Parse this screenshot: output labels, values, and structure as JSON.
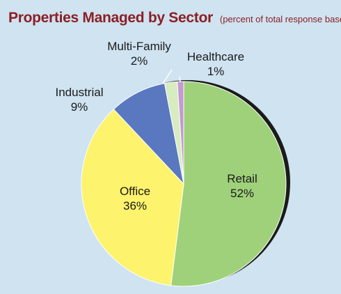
{
  "chart_data": {
    "type": "pie",
    "title": "Properties Managed by Sector",
    "subtitle": "(percent of total response base)",
    "unit": "%",
    "slices": [
      {
        "name": "Retail",
        "value": 52,
        "color": "#9fd17a"
      },
      {
        "name": "Office",
        "value": 36,
        "color": "#fdf36c"
      },
      {
        "name": "Industrial",
        "value": 9,
        "color": "#5a78c0"
      },
      {
        "name": "Multi-Family",
        "value": 2,
        "color": "#d7ecc0"
      },
      {
        "name": "Healthcare",
        "value": 1,
        "color": "#c39ad1"
      }
    ],
    "start_angle_deg": 0,
    "direction": "clockwise"
  }
}
